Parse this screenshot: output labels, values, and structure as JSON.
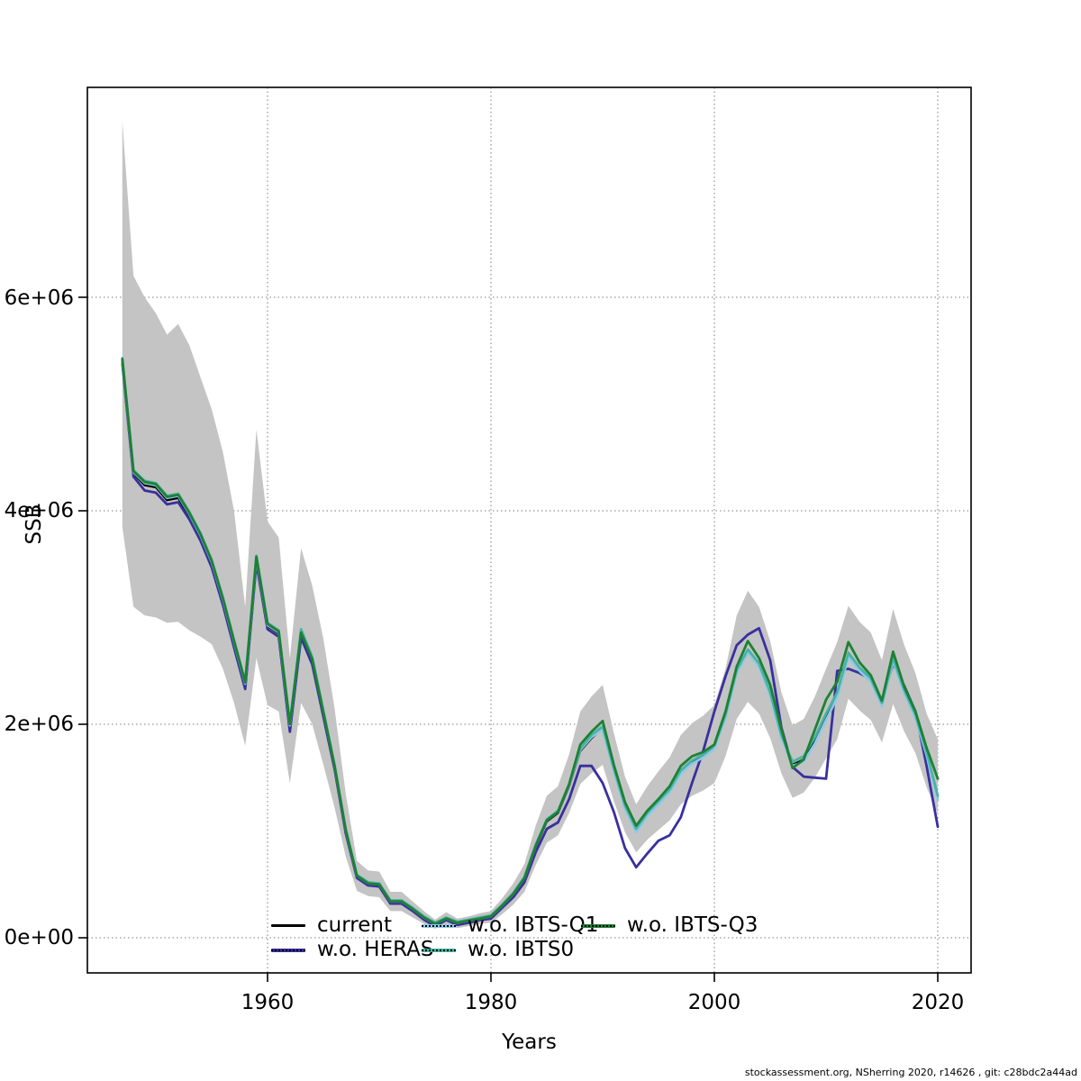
{
  "figure": {
    "x_axis_title": "Years",
    "y_axis_title": "SSB",
    "watermark": "stockassessment.org, NSherring 2020, r14626 , git: c28bdc2a44ad"
  },
  "axes": {
    "x_ticks": [
      "1960",
      "1980",
      "2000",
      "2020"
    ],
    "y_ticks": [
      "0e+00",
      "2e+06",
      "4e+06",
      "6e+06"
    ]
  },
  "legend": {
    "position": "bottom-inside",
    "items": [
      {
        "label": "current",
        "color": "#000000",
        "style": "solid"
      },
      {
        "label": "w.o. HERAS",
        "color": "#38309e",
        "style": "dashed"
      },
      {
        "label": "w.o. IBTS-Q1",
        "color": "#8fc9e6",
        "style": "dashed"
      },
      {
        "label": "w.o. IBTS0",
        "color": "#4ab3a4",
        "style": "dashed"
      },
      {
        "label": "w.o. IBTS-Q3",
        "color": "#1e8034",
        "style": "dashed"
      }
    ]
  },
  "chart_data": {
    "type": "line",
    "title": "",
    "xlabel": "Years",
    "ylabel": "SSB",
    "units": "SSB values in millions (value x 1e6)",
    "grid": "dotted",
    "xlim": [
      1943.9,
      2023.1
    ],
    "ylim": [
      0,
      8300000
    ],
    "x_tick_values": [
      1960,
      1980,
      2000,
      2020
    ],
    "y_tick_values": [
      0,
      2000000,
      4000000,
      6000000
    ],
    "x": [
      1947,
      1948,
      1949,
      1950,
      1951,
      1952,
      1953,
      1954,
      1955,
      1956,
      1957,
      1958,
      1959,
      1960,
      1961,
      1962,
      1963,
      1964,
      1965,
      1966,
      1967,
      1968,
      1969,
      1970,
      1971,
      1972,
      1973,
      1974,
      1975,
      1976,
      1977,
      1978,
      1979,
      1980,
      1981,
      1982,
      1983,
      1984,
      1985,
      1986,
      1987,
      1988,
      1989,
      1990,
      1991,
      1992,
      1993,
      1994,
      1995,
      1996,
      1997,
      1998,
      1999,
      2000,
      2001,
      2002,
      2003,
      2004,
      2005,
      2006,
      2007,
      2008,
      2009,
      2010,
      2011,
      2012,
      2013,
      2014,
      2015,
      2016,
      2017,
      2018,
      2019,
      2020
    ],
    "band": {
      "name": "confidence-band-current",
      "color": "#c4c4c4",
      "upper": [
        7.65,
        6.2,
        6.0,
        5.85,
        5.65,
        5.75,
        5.55,
        5.25,
        4.95,
        4.55,
        4.0,
        3.1,
        4.76,
        3.9,
        3.75,
        2.62,
        3.65,
        3.3,
        2.8,
        2.15,
        1.35,
        0.72,
        0.63,
        0.62,
        0.43,
        0.43,
        0.34,
        0.25,
        0.17,
        0.24,
        0.18,
        0.2,
        0.23,
        0.25,
        0.37,
        0.51,
        0.69,
        1.05,
        1.33,
        1.42,
        1.72,
        2.12,
        2.26,
        2.37,
        1.92,
        1.51,
        1.25,
        1.42,
        1.56,
        1.69,
        1.9,
        2.01,
        2.08,
        2.18,
        2.52,
        3.02,
        3.25,
        3.1,
        2.78,
        2.3,
        1.99,
        2.05,
        2.26,
        2.52,
        2.77,
        3.11,
        2.96,
        2.86,
        2.6,
        3.08,
        2.74,
        2.48,
        2.1,
        1.86
      ],
      "lower": [
        3.85,
        3.1,
        3.02,
        3.0,
        2.95,
        2.96,
        2.88,
        2.82,
        2.75,
        2.52,
        2.2,
        1.8,
        2.62,
        2.18,
        2.12,
        1.45,
        2.2,
        2.0,
        1.62,
        1.22,
        0.76,
        0.44,
        0.39,
        0.38,
        0.25,
        0.25,
        0.19,
        0.13,
        0.085,
        0.125,
        0.09,
        0.11,
        0.13,
        0.14,
        0.22,
        0.31,
        0.43,
        0.68,
        0.89,
        0.96,
        1.17,
        1.44,
        1.54,
        1.62,
        1.28,
        0.99,
        0.8,
        0.92,
        1.01,
        1.1,
        1.25,
        1.33,
        1.38,
        1.45,
        1.7,
        2.05,
        2.21,
        2.1,
        1.87,
        1.54,
        1.31,
        1.36,
        1.5,
        1.68,
        1.86,
        2.24,
        2.13,
        2.04,
        1.83,
        2.19,
        1.93,
        1.73,
        1.41,
        1.16
      ]
    },
    "series": [
      {
        "name": "current",
        "color": "#000000",
        "width": 2.4,
        "values": [
          5.4,
          4.35,
          4.24,
          4.22,
          4.1,
          4.12,
          3.95,
          3.75,
          3.5,
          3.15,
          2.75,
          2.36,
          3.55,
          2.92,
          2.85,
          1.97,
          2.85,
          2.6,
          2.1,
          1.6,
          1.0,
          0.57,
          0.5,
          0.49,
          0.33,
          0.33,
          0.26,
          0.18,
          0.12,
          0.175,
          0.13,
          0.15,
          0.175,
          0.19,
          0.29,
          0.4,
          0.55,
          0.85,
          1.09,
          1.17,
          1.42,
          1.75,
          1.87,
          1.96,
          1.57,
          1.22,
          1.0,
          1.15,
          1.26,
          1.37,
          1.55,
          1.64,
          1.7,
          1.78,
          2.07,
          2.49,
          2.68,
          2.55,
          2.28,
          1.88,
          1.62,
          1.67,
          1.84,
          2.06,
          2.27,
          2.64,
          2.51,
          2.41,
          2.18,
          2.6,
          2.3,
          2.07,
          1.72,
          1.3
        ]
      },
      {
        "name": "w.o. HERAS",
        "color": "#38309e",
        "width": 2.8,
        "values": [
          5.38,
          4.32,
          4.19,
          4.17,
          4.06,
          4.08,
          3.92,
          3.72,
          3.47,
          3.12,
          2.72,
          2.33,
          3.51,
          2.89,
          2.82,
          1.93,
          2.81,
          2.56,
          2.07,
          1.58,
          0.98,
          0.56,
          0.49,
          0.48,
          0.32,
          0.32,
          0.25,
          0.17,
          0.11,
          0.165,
          0.12,
          0.14,
          0.165,
          0.18,
          0.28,
          0.38,
          0.52,
          0.8,
          1.02,
          1.08,
          1.3,
          1.61,
          1.61,
          1.45,
          1.18,
          0.84,
          0.66,
          0.79,
          0.91,
          0.96,
          1.13,
          1.45,
          1.75,
          2.12,
          2.45,
          2.74,
          2.84,
          2.9,
          2.6,
          1.97,
          1.6,
          1.51,
          1.5,
          1.49,
          2.5,
          2.52,
          2.48,
          2.42,
          2.21,
          2.57,
          2.36,
          2.12,
          1.61,
          1.04
        ]
      },
      {
        "name": "w.o. IBTS-Q1",
        "color": "#8fc9e6",
        "width": 2.8,
        "values": [
          5.41,
          4.36,
          4.26,
          4.24,
          4.12,
          4.14,
          3.97,
          3.77,
          3.52,
          3.17,
          2.77,
          2.38,
          3.56,
          2.93,
          2.86,
          1.99,
          2.88,
          2.62,
          2.12,
          1.61,
          1.01,
          0.58,
          0.51,
          0.5,
          0.34,
          0.34,
          0.27,
          0.19,
          0.13,
          0.18,
          0.14,
          0.16,
          0.18,
          0.2,
          0.3,
          0.41,
          0.56,
          0.86,
          1.1,
          1.18,
          1.43,
          1.76,
          1.88,
          1.95,
          1.56,
          1.21,
          0.99,
          1.14,
          1.25,
          1.36,
          1.54,
          1.63,
          1.69,
          1.77,
          2.06,
          2.48,
          2.67,
          2.54,
          2.27,
          1.87,
          1.61,
          1.65,
          1.82,
          2.04,
          2.25,
          2.63,
          2.5,
          2.4,
          2.17,
          2.59,
          2.29,
          2.06,
          1.71,
          1.29
        ]
      },
      {
        "name": "w.o. IBTS0",
        "color": "#4ab3a4",
        "width": 2.8,
        "values": [
          5.43,
          4.38,
          4.28,
          4.26,
          4.14,
          4.16,
          3.99,
          3.79,
          3.54,
          3.19,
          2.79,
          2.4,
          3.58,
          2.95,
          2.88,
          2.01,
          2.89,
          2.63,
          2.13,
          1.62,
          1.02,
          0.59,
          0.52,
          0.51,
          0.35,
          0.35,
          0.28,
          0.2,
          0.14,
          0.19,
          0.15,
          0.17,
          0.19,
          0.21,
          0.31,
          0.42,
          0.57,
          0.87,
          1.11,
          1.19,
          1.44,
          1.77,
          1.9,
          1.98,
          1.59,
          1.24,
          1.02,
          1.17,
          1.28,
          1.39,
          1.57,
          1.66,
          1.72,
          1.8,
          2.09,
          2.51,
          2.7,
          2.57,
          2.3,
          1.9,
          1.65,
          1.7,
          1.88,
          2.1,
          2.3,
          2.67,
          2.53,
          2.43,
          2.2,
          2.62,
          2.32,
          2.09,
          1.74,
          1.33
        ]
      },
      {
        "name": "w.o. IBTS-Q3",
        "color": "#1e8034",
        "width": 2.8,
        "values": [
          5.42,
          4.37,
          4.27,
          4.25,
          4.13,
          4.15,
          3.98,
          3.78,
          3.53,
          3.18,
          2.78,
          2.39,
          3.57,
          2.94,
          2.87,
          2.0,
          2.86,
          2.61,
          2.11,
          1.61,
          1.01,
          0.58,
          0.51,
          0.5,
          0.34,
          0.34,
          0.27,
          0.19,
          0.13,
          0.18,
          0.14,
          0.16,
          0.18,
          0.2,
          0.3,
          0.41,
          0.56,
          0.86,
          1.1,
          1.18,
          1.44,
          1.81,
          1.93,
          2.03,
          1.62,
          1.27,
          1.05,
          1.19,
          1.3,
          1.42,
          1.61,
          1.7,
          1.74,
          1.81,
          2.12,
          2.54,
          2.78,
          2.62,
          2.37,
          1.95,
          1.59,
          1.67,
          1.95,
          2.23,
          2.4,
          2.77,
          2.58,
          2.46,
          2.22,
          2.68,
          2.35,
          2.12,
          1.78,
          1.49
        ]
      }
    ]
  }
}
